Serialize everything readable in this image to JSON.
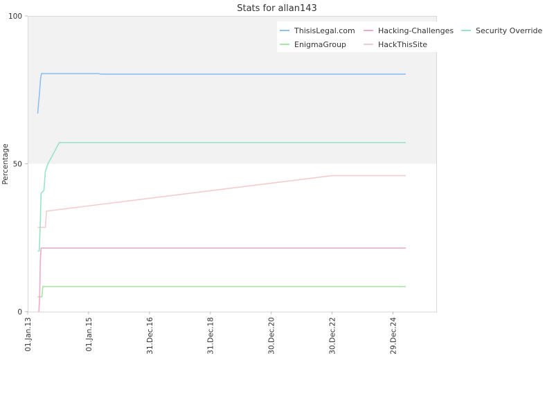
{
  "chart_data": {
    "type": "line",
    "title": "Stats for allan143",
    "xlabel": "",
    "ylabel": "Percentage",
    "ylim": [
      0,
      100
    ],
    "xlim": [
      "2013-01-01",
      "2026-06-01"
    ],
    "yticks": [
      0,
      50,
      100
    ],
    "xticks": [
      "2013-01-01",
      "2015-01-01",
      "2016-12-31",
      "2018-12-31",
      "2020-12-30",
      "2022-12-30",
      "2024-12-29"
    ],
    "xtick_labels": [
      "01.Jan.13",
      "01.Jan.15",
      "31.Dec.16",
      "31.Dec.18",
      "30.Dec.20",
      "30.Dec.22",
      "29.Dec.24"
    ],
    "grid": false,
    "shaded_band": [
      50,
      100
    ],
    "legend_placement": "top-right",
    "series": [
      {
        "name": "ThisisLegal.com",
        "color": "#8fbff0",
        "points": [
          [
            "2013-05-01",
            67
          ],
          [
            "2013-05-10",
            70
          ],
          [
            "2013-05-20",
            73
          ],
          [
            "2013-06-05",
            79
          ],
          [
            "2013-06-15",
            80.5
          ],
          [
            "2015-05-01",
            80.5
          ],
          [
            "2015-06-01",
            80.3
          ],
          [
            "2025-06-01",
            80.3
          ]
        ]
      },
      {
        "name": "EnigmaGroup",
        "color": "#a6e6a6",
        "points": [
          [
            "2013-05-01",
            5
          ],
          [
            "2013-06-20",
            5
          ],
          [
            "2013-07-01",
            8.5
          ],
          [
            "2025-06-01",
            8.5
          ]
        ]
      },
      {
        "name": "Hacking-Challenges",
        "color": "#f2a9c8",
        "points": [
          [
            "2013-05-15",
            0
          ],
          [
            "2013-05-25",
            5
          ],
          [
            "2013-06-01",
            17
          ],
          [
            "2013-06-10",
            21.5
          ],
          [
            "2025-06-01",
            21.5
          ]
        ]
      },
      {
        "name": "HackThisSite",
        "color": "#f4cccc",
        "points": [
          [
            "2013-05-01",
            28.5
          ],
          [
            "2013-08-01",
            28.5
          ],
          [
            "2013-08-15",
            34
          ],
          [
            "2022-12-30",
            46
          ],
          [
            "2025-06-01",
            46
          ]
        ]
      },
      {
        "name": "Security Override",
        "color": "#98e4c8",
        "points": [
          [
            "2013-05-01",
            20.5
          ],
          [
            "2013-05-20",
            20.5
          ],
          [
            "2013-06-01",
            30
          ],
          [
            "2013-06-10",
            40
          ],
          [
            "2013-07-15",
            41
          ],
          [
            "2013-08-01",
            47.5
          ],
          [
            "2013-09-01",
            50
          ],
          [
            "2014-01-15",
            57.2
          ],
          [
            "2025-06-01",
            57.2
          ]
        ]
      }
    ]
  }
}
